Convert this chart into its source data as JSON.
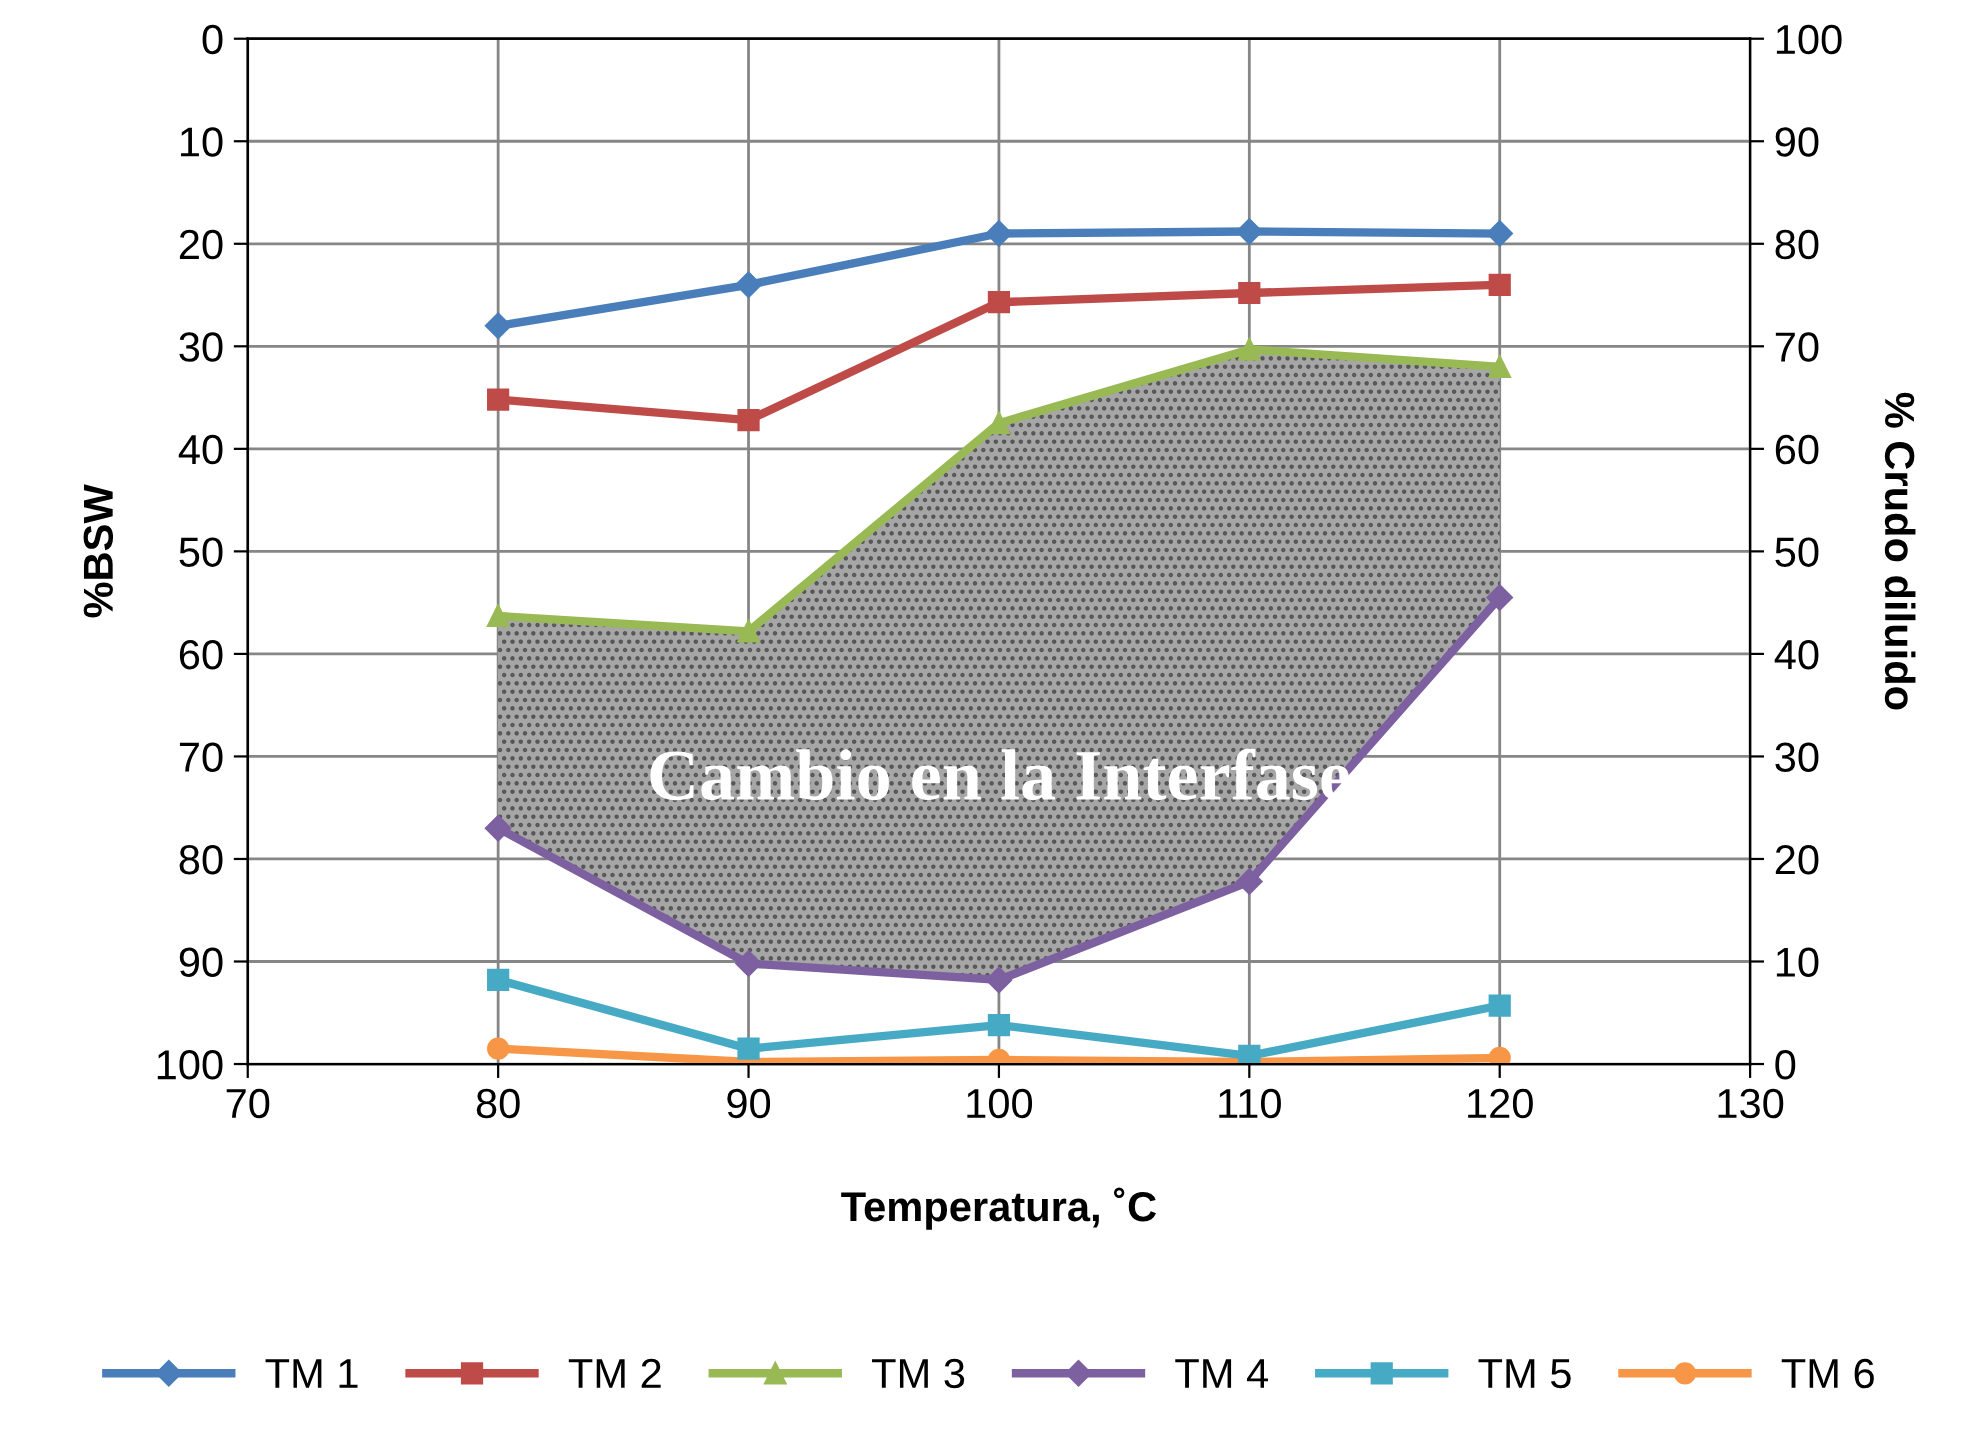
{
  "chart_data": {
    "type": "line",
    "xlabel": "Temperatura, ˚C",
    "ylabel": "%BSW",
    "y2label": "% Crudo diluido",
    "x": [
      80,
      90,
      100,
      110,
      120
    ],
    "series": [
      {
        "name": "TM 1",
        "color": "#4a7ebb",
        "marker": "diamond",
        "values": [
          28,
          24,
          19,
          18.8,
          19
        ]
      },
      {
        "name": "TM 2",
        "color": "#be4b48",
        "marker": "square",
        "values": [
          35.2,
          37.2,
          25.7,
          24.8,
          24
        ]
      },
      {
        "name": "TM 3",
        "color": "#98b954",
        "marker": "triangle",
        "values": [
          56.3,
          57.8,
          37.5,
          30.3,
          32
        ],
        "lower": [
          56.3,
          57.8,
          37.5,
          30.3,
          32
        ],
        "upper": [
          77,
          90.2,
          91.8,
          82.2,
          54.5
        ]
      },
      {
        "name": "TM 4",
        "color": "#7d60a0",
        "marker": "diamond",
        "values": [
          77,
          90.2,
          91.8,
          82.2,
          54.5
        ]
      },
      {
        "name": "TM 5",
        "color": "#46aac5",
        "marker": "square",
        "values": [
          91.8,
          98.5,
          96.2,
          99.2,
          94.3
        ]
      },
      {
        "name": "TM 6",
        "color": "#f79646",
        "marker": "circle",
        "values": [
          98.5,
          99.8,
          99.6,
          99.8,
          99.4
        ]
      }
    ],
    "annotations": [
      "Cambio en la Interfase"
    ],
    "xlim": [
      70,
      130
    ],
    "xticks": [
      70,
      80,
      90,
      100,
      110,
      120,
      130
    ],
    "ylim": [
      100,
      0
    ],
    "yticks": [
      0,
      10,
      20,
      30,
      40,
      50,
      60,
      70,
      80,
      90,
      100
    ],
    "y2lim": [
      0,
      100
    ],
    "y2ticks": [
      0,
      10,
      20,
      30,
      40,
      50,
      60,
      70,
      80,
      90,
      100
    ],
    "grid": true,
    "legend": "bottom",
    "line_style": "solid"
  }
}
